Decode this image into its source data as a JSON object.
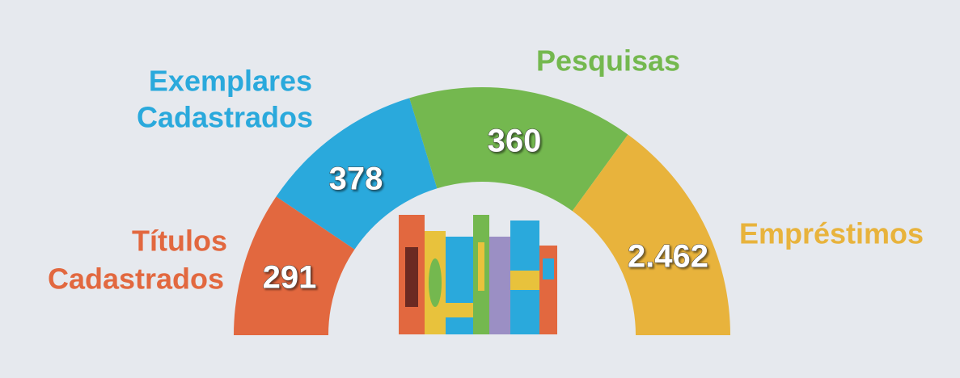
{
  "items": [
    {
      "label_lines": [
        "Títulos",
        "Cadastrados"
      ],
      "value": "291"
    },
    {
      "label_lines": [
        "Exemplares",
        "Cadastrados"
      ],
      "value": "378"
    },
    {
      "label_lines": [
        "Pesquisas"
      ],
      "value": "360"
    },
    {
      "label_lines": [
        "Empréstimos"
      ],
      "value": "2.462"
    }
  ]
}
